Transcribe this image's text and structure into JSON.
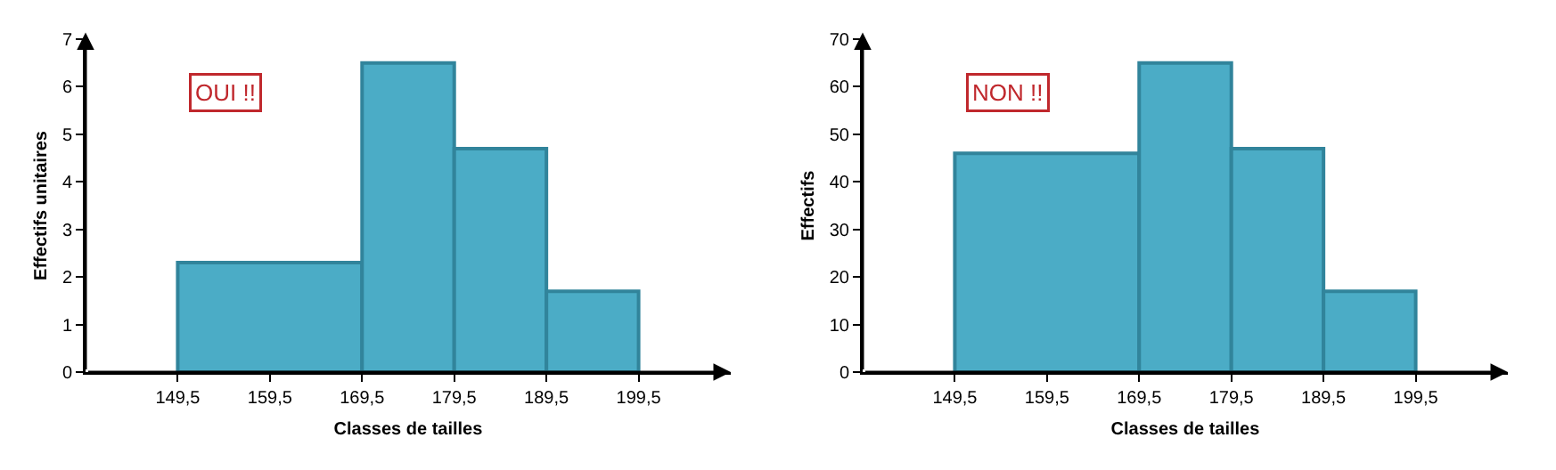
{
  "chart_data": [
    {
      "type": "histogram",
      "ylabel": "Effectifs unitaires",
      "xlabel": "Classes de tailles",
      "annotations": [
        "OUI !!"
      ],
      "bins": [
        149.5,
        169.5,
        179.5,
        189.5,
        199.5
      ],
      "values": [
        2.3,
        6.5,
        4.7,
        1.7
      ],
      "color": "#4bacc6",
      "xlim": [
        139.5,
        209.5
      ],
      "xticks": [
        {
          "value": 149.5,
          "label": "149,5"
        },
        {
          "value": 159.5,
          "label": "159,5"
        },
        {
          "value": 169.5,
          "label": "169,5"
        },
        {
          "value": 179.5,
          "label": "179,5"
        },
        {
          "value": 189.5,
          "label": "189,5"
        },
        {
          "value": 199.5,
          "label": "199,5"
        }
      ],
      "ylim": [
        0,
        7
      ],
      "yticks": [
        0,
        1,
        2,
        3,
        4,
        5,
        6,
        7
      ],
      "grid": false
    },
    {
      "type": "histogram",
      "ylabel": "Effectifs",
      "xlabel": "Classes de tailles",
      "annotations": [
        "NON !!"
      ],
      "bins": [
        149.5,
        169.5,
        179.5,
        189.5,
        199.5
      ],
      "values": [
        46,
        65,
        47,
        17
      ],
      "color": "#4bacc6",
      "xlim": [
        139.5,
        209.5
      ],
      "xticks": [
        {
          "value": 149.5,
          "label": "149,5"
        },
        {
          "value": 159.5,
          "label": "159,5"
        },
        {
          "value": 169.5,
          "label": "169,5"
        },
        {
          "value": 179.5,
          "label": "179,5"
        },
        {
          "value": 189.5,
          "label": "189,5"
        },
        {
          "value": 199.5,
          "label": "199,5"
        }
      ],
      "ylim": [
        0,
        70
      ],
      "yticks": [
        0,
        10,
        20,
        30,
        40,
        50,
        60,
        70
      ],
      "grid": false
    }
  ]
}
